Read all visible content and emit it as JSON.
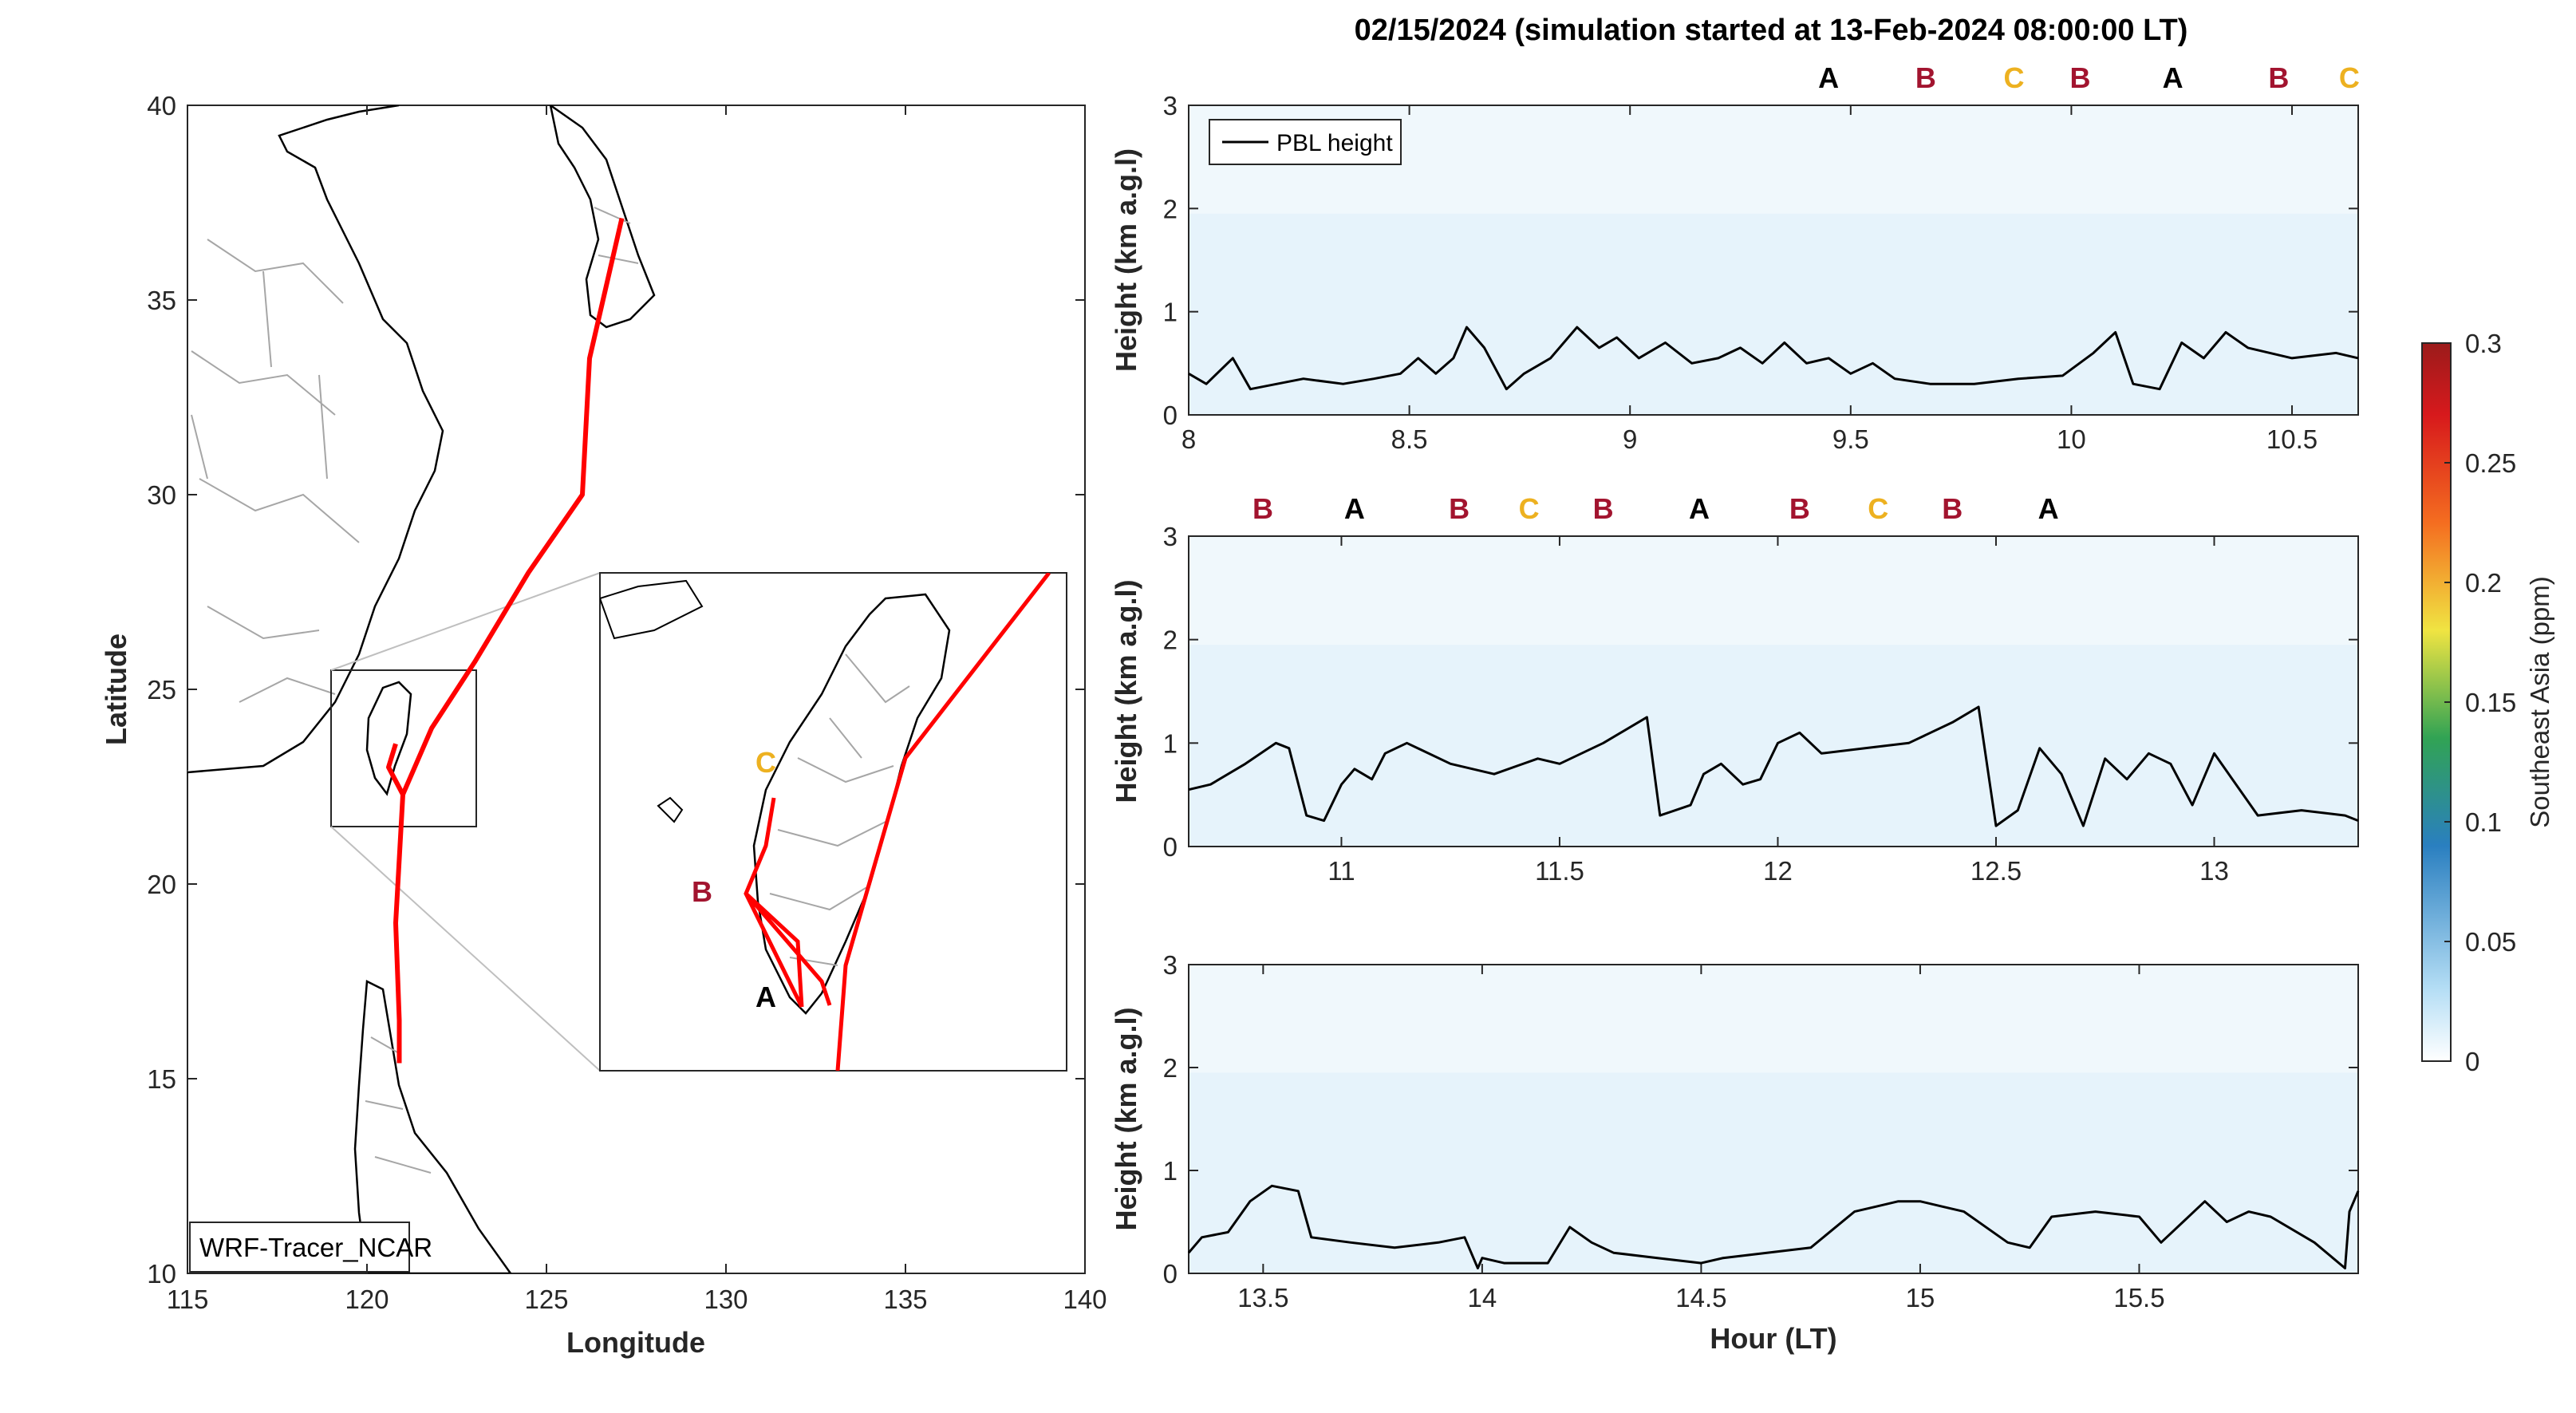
{
  "title": "02/15/2024 (simulation started at 13-Feb-2024 08:00:00 LT)",
  "colors": {
    "A": "#000000",
    "B": "#a2142f",
    "C": "#edb120",
    "track": "#ff0000",
    "pbl": "#000000",
    "shade": "#e6f3fb"
  },
  "map": {
    "xlabel": "Longitude",
    "ylabel": "Latitude",
    "xticks": [
      "115",
      "120",
      "125",
      "130",
      "135",
      "140"
    ],
    "yticks": [
      "10",
      "15",
      "20",
      "25",
      "30",
      "35",
      "40"
    ],
    "xlim": [
      115,
      140
    ],
    "ylim": [
      10,
      40
    ],
    "label_box": "WRF-Tracer_NCAR",
    "inset_markers": [
      "A",
      "B",
      "C"
    ],
    "track": [
      [
        127.1,
        37.1
      ],
      [
        126.2,
        33.5
      ],
      [
        126.0,
        30.0
      ],
      [
        124.5,
        28.0
      ],
      [
        123.0,
        25.7
      ],
      [
        121.8,
        24.0
      ],
      [
        121.0,
        22.3
      ],
      [
        120.8,
        19.0
      ],
      [
        120.9,
        16.5
      ],
      [
        120.9,
        15.4
      ]
    ],
    "track_branch": [
      [
        121.0,
        22.3
      ],
      [
        120.6,
        23.0
      ],
      [
        120.8,
        23.6
      ]
    ]
  },
  "colorbar": {
    "label": "Southeast Asia (ppm)",
    "ticks": [
      "0",
      "0.05",
      "0.1",
      "0.15",
      "0.2",
      "0.25",
      "0.3"
    ],
    "range": [
      0,
      0.3
    ]
  },
  "chart_data": [
    {
      "type": "line",
      "series": [
        {
          "name": "PBL height",
          "x": [
            8.0,
            8.04,
            8.1,
            8.14,
            8.2,
            8.26,
            8.35,
            8.42,
            8.48,
            8.52,
            8.56,
            8.6,
            8.63,
            8.67,
            8.72,
            8.76,
            8.82,
            8.88,
            8.93,
            8.97,
            9.02,
            9.08,
            9.14,
            9.2,
            9.25,
            9.3,
            9.35,
            9.4,
            9.45,
            9.5,
            9.55,
            9.6,
            9.68,
            9.78,
            9.88,
            9.98,
            10.05,
            10.1,
            10.14,
            10.2,
            10.25,
            10.3,
            10.35,
            10.4,
            10.5,
            10.6,
            10.65
          ],
          "values": [
            0.4,
            0.3,
            0.55,
            0.25,
            0.3,
            0.35,
            0.3,
            0.35,
            0.4,
            0.55,
            0.4,
            0.55,
            0.85,
            0.65,
            0.25,
            0.4,
            0.55,
            0.85,
            0.65,
            0.75,
            0.55,
            0.7,
            0.5,
            0.55,
            0.65,
            0.5,
            0.7,
            0.5,
            0.55,
            0.4,
            0.5,
            0.35,
            0.3,
            0.3,
            0.35,
            0.38,
            0.6,
            0.8,
            0.3,
            0.25,
            0.7,
            0.55,
            0.8,
            0.65,
            0.55,
            0.6,
            0.55
          ]
        }
      ],
      "xlim": [
        8,
        10.65
      ],
      "ylim": [
        0,
        3
      ],
      "xticks": [
        "8",
        "8.5",
        "9",
        "9.5",
        "10",
        "10.5"
      ],
      "yticks": [
        "0",
        "1",
        "2",
        "3"
      ],
      "xlabel": "",
      "ylabel": "Height (km a.g.l)",
      "legend": "PBL height",
      "legend_location": "top-left",
      "markers": [
        {
          "label": "A",
          "x": 9.45
        },
        {
          "label": "B",
          "x": 9.67
        },
        {
          "label": "C",
          "x": 9.87
        },
        {
          "label": "B",
          "x": 10.02
        },
        {
          "label": "A",
          "x": 10.23
        },
        {
          "label": "B",
          "x": 10.47
        },
        {
          "label": "C",
          "x": 10.63
        }
      ]
    },
    {
      "type": "line",
      "series": [
        {
          "name": "PBL height",
          "x": [
            10.65,
            10.7,
            10.78,
            10.85,
            10.88,
            10.92,
            10.96,
            11.0,
            11.03,
            11.07,
            11.1,
            11.15,
            11.25,
            11.35,
            11.45,
            11.5,
            11.6,
            11.7,
            11.73,
            11.8,
            11.83,
            11.87,
            11.92,
            11.96,
            12.0,
            12.05,
            12.1,
            12.2,
            12.3,
            12.4,
            12.46,
            12.5,
            12.55,
            12.6,
            12.65,
            12.7,
            12.75,
            12.8,
            12.85,
            12.9,
            12.95,
            13.0,
            13.1,
            13.2,
            13.3,
            13.33
          ],
          "values": [
            0.55,
            0.6,
            0.8,
            1.0,
            0.95,
            0.3,
            0.25,
            0.6,
            0.75,
            0.65,
            0.9,
            1.0,
            0.8,
            0.7,
            0.85,
            0.8,
            1.0,
            1.25,
            0.3,
            0.4,
            0.7,
            0.8,
            0.6,
            0.65,
            1.0,
            1.1,
            0.9,
            0.95,
            1.0,
            1.2,
            1.35,
            0.2,
            0.35,
            0.95,
            0.7,
            0.2,
            0.85,
            0.65,
            0.9,
            0.8,
            0.4,
            0.9,
            0.3,
            0.35,
            0.3,
            0.25
          ]
        }
      ],
      "xlim": [
        10.65,
        13.33
      ],
      "ylim": [
        0,
        3
      ],
      "xticks": [
        "11",
        "11.5",
        "12",
        "12.5",
        "13"
      ],
      "yticks": [
        "0",
        "1",
        "2",
        "3"
      ],
      "xlabel": "",
      "ylabel": "Height (km a.g.l)",
      "markers": [
        {
          "label": "B",
          "x": 10.82
        },
        {
          "label": "A",
          "x": 11.03
        },
        {
          "label": "B",
          "x": 11.27
        },
        {
          "label": "C",
          "x": 11.43
        },
        {
          "label": "B",
          "x": 11.6
        },
        {
          "label": "A",
          "x": 11.82
        },
        {
          "label": "B",
          "x": 12.05
        },
        {
          "label": "C",
          "x": 12.23
        },
        {
          "label": "B",
          "x": 12.4
        },
        {
          "label": "A",
          "x": 12.62
        }
      ]
    },
    {
      "type": "line",
      "series": [
        {
          "name": "PBL height",
          "x": [
            13.33,
            13.36,
            13.42,
            13.47,
            13.52,
            13.58,
            13.61,
            13.7,
            13.8,
            13.9,
            13.96,
            13.99,
            14.0,
            14.05,
            14.15,
            14.2,
            14.25,
            14.3,
            14.4,
            14.5,
            14.55,
            14.65,
            14.75,
            14.85,
            14.9,
            14.95,
            15.0,
            15.05,
            15.1,
            15.2,
            15.25,
            15.3,
            15.4,
            15.5,
            15.55,
            15.6,
            15.65,
            15.7,
            15.75,
            15.8,
            15.9,
            15.97,
            15.98,
            16.0
          ],
          "values": [
            0.2,
            0.35,
            0.4,
            0.7,
            0.85,
            0.8,
            0.35,
            0.3,
            0.25,
            0.3,
            0.35,
            0.05,
            0.15,
            0.1,
            0.1,
            0.45,
            0.3,
            0.2,
            0.15,
            0.1,
            0.15,
            0.2,
            0.25,
            0.6,
            0.65,
            0.7,
            0.7,
            0.65,
            0.6,
            0.3,
            0.25,
            0.55,
            0.6,
            0.55,
            0.3,
            0.5,
            0.7,
            0.5,
            0.6,
            0.55,
            0.3,
            0.05,
            0.6,
            0.8
          ]
        }
      ],
      "xlim": [
        13.33,
        16.0
      ],
      "ylim": [
        0,
        3
      ],
      "xticks": [
        "13.5",
        "14",
        "14.5",
        "15",
        "15.5"
      ],
      "yticks": [
        "0",
        "1",
        "2",
        "3"
      ],
      "xlabel": "Hour (LT)",
      "ylabel": "Height (km a.g.l)",
      "markers": []
    }
  ]
}
